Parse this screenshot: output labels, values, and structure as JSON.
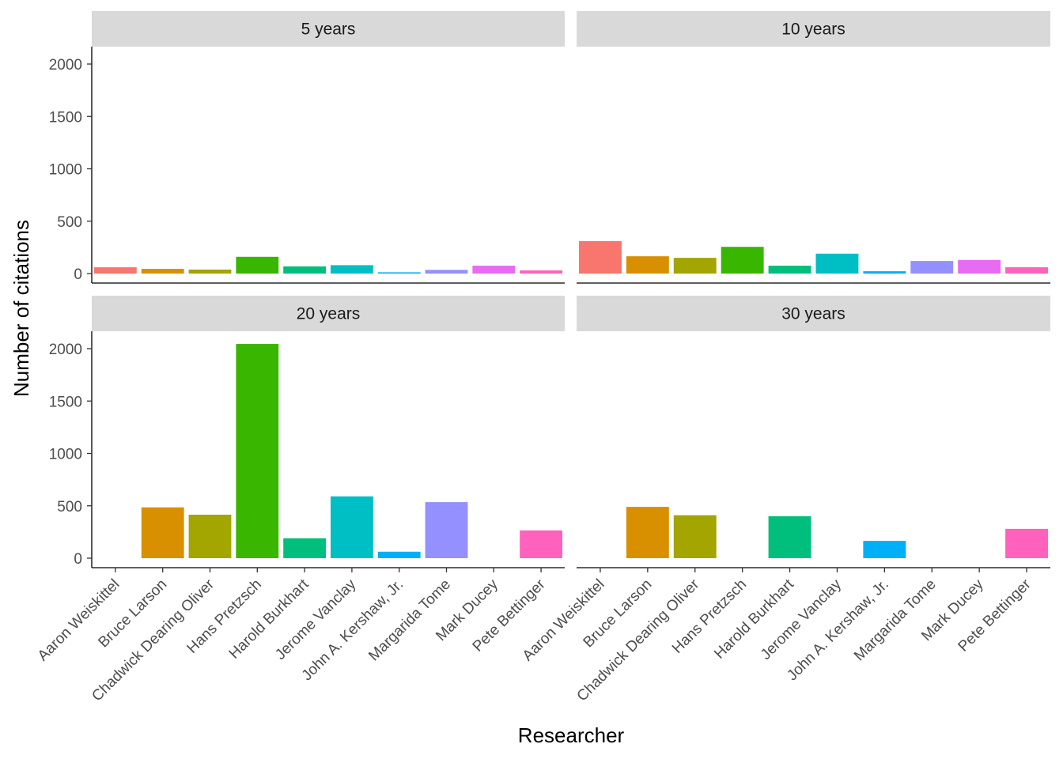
{
  "chart_data": {
    "type": "bar",
    "xlabel": "Researcher",
    "ylabel": "Number of citations",
    "ylim": [
      0,
      2050
    ],
    "yticks": [
      0,
      500,
      1000,
      1500,
      2000
    ],
    "grid": false,
    "legend": "none",
    "categories": [
      "Aaron Weiskittel",
      "Bruce Larson",
      "Chadwick Dearing Oliver",
      "Hans Pretzsch",
      "Harold Burkhart",
      "Jerome Vanclay",
      "John A. Kershaw, Jr.",
      "Margarida Tome",
      "Mark Ducey",
      "Pete Bettinger"
    ],
    "colors": [
      "#F8766D",
      "#D89000",
      "#A3A500",
      "#39B600",
      "#00BF7D",
      "#00BFC4",
      "#00B0F6",
      "#9590FF",
      "#E76BF3",
      "#FF62BC"
    ],
    "panels": [
      {
        "label": "5 years",
        "values": [
          60,
          45,
          38,
          160,
          68,
          80,
          12,
          35,
          75,
          30
        ]
      },
      {
        "label": "10 years",
        "values": [
          310,
          165,
          150,
          255,
          75,
          190,
          22,
          120,
          130,
          60
        ]
      },
      {
        "label": "20 years",
        "values": [
          0,
          485,
          415,
          2045,
          190,
          590,
          62,
          535,
          0,
          265
        ]
      },
      {
        "label": "30 years",
        "values": [
          0,
          490,
          410,
          0,
          400,
          0,
          165,
          0,
          0,
          280
        ]
      }
    ]
  }
}
